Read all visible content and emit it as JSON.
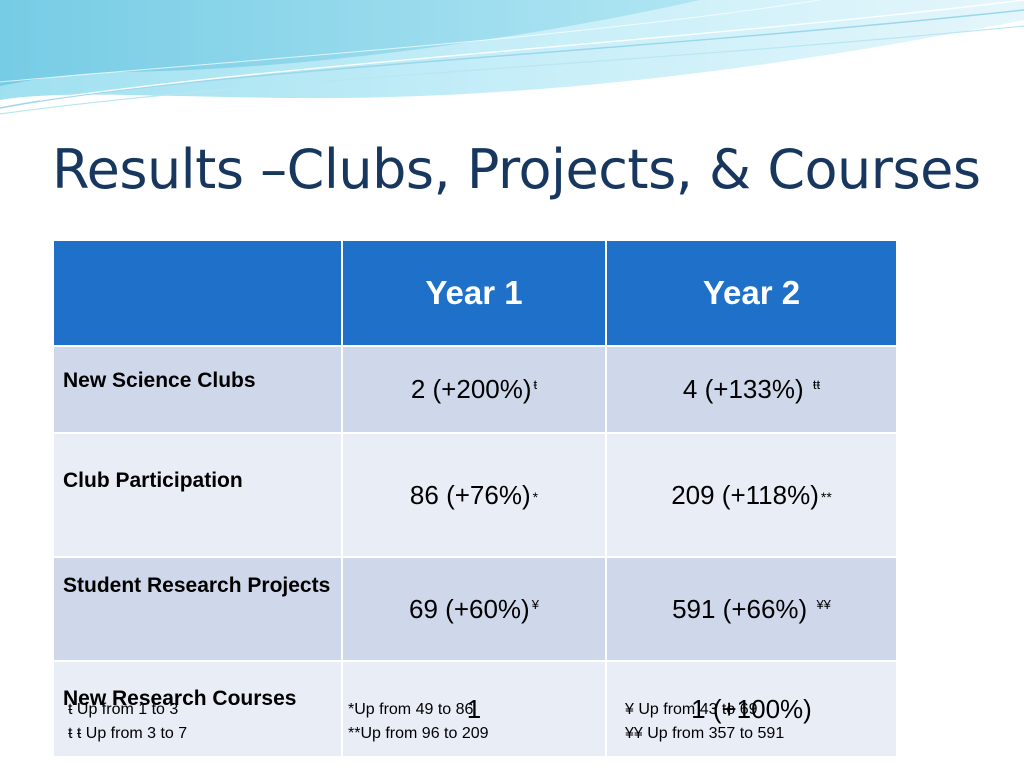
{
  "slide": {
    "title": "Results –Clubs, Projects, & Courses"
  },
  "table": {
    "headers": [
      "",
      "Year 1",
      "Year 2"
    ],
    "rows": [
      {
        "label": "New Science Clubs",
        "year1": "2 (+200%)",
        "year1_mark": "ŧ",
        "year2": "4 (+133%)",
        "year2_mark": "ŧŧ"
      },
      {
        "label": "Club Participation",
        "year1": "86 (+76%)",
        "year1_mark": "*",
        "year2": "209 (+118%)",
        "year2_mark": "**"
      },
      {
        "label": "Student Research Projects",
        "year1": "69 (+60%)",
        "year1_mark": "¥",
        "year2": "591 (+66%)",
        "year2_mark": "¥¥"
      },
      {
        "label": "New Research Courses",
        "year1": "1",
        "year1_mark": "",
        "year2": "1 (+100%)",
        "year2_mark": ""
      }
    ]
  },
  "footnotes": {
    "col1": [
      "ŧ Up from 1 to 3",
      "ŧ ŧ Up from 3 to 7"
    ],
    "col2": [
      "*Up from 49 to 86",
      "**Up from 96 to 209"
    ],
    "col3": [
      "¥ Up from 43 to 69",
      "¥¥ Up from 357 to 591"
    ]
  },
  "colors": {
    "title": "#17375e",
    "header_fill": "#1f70c8",
    "row_dark": "#cfd8eb",
    "row_light": "#e9edf6",
    "swoosh": "#7fd0e6"
  }
}
